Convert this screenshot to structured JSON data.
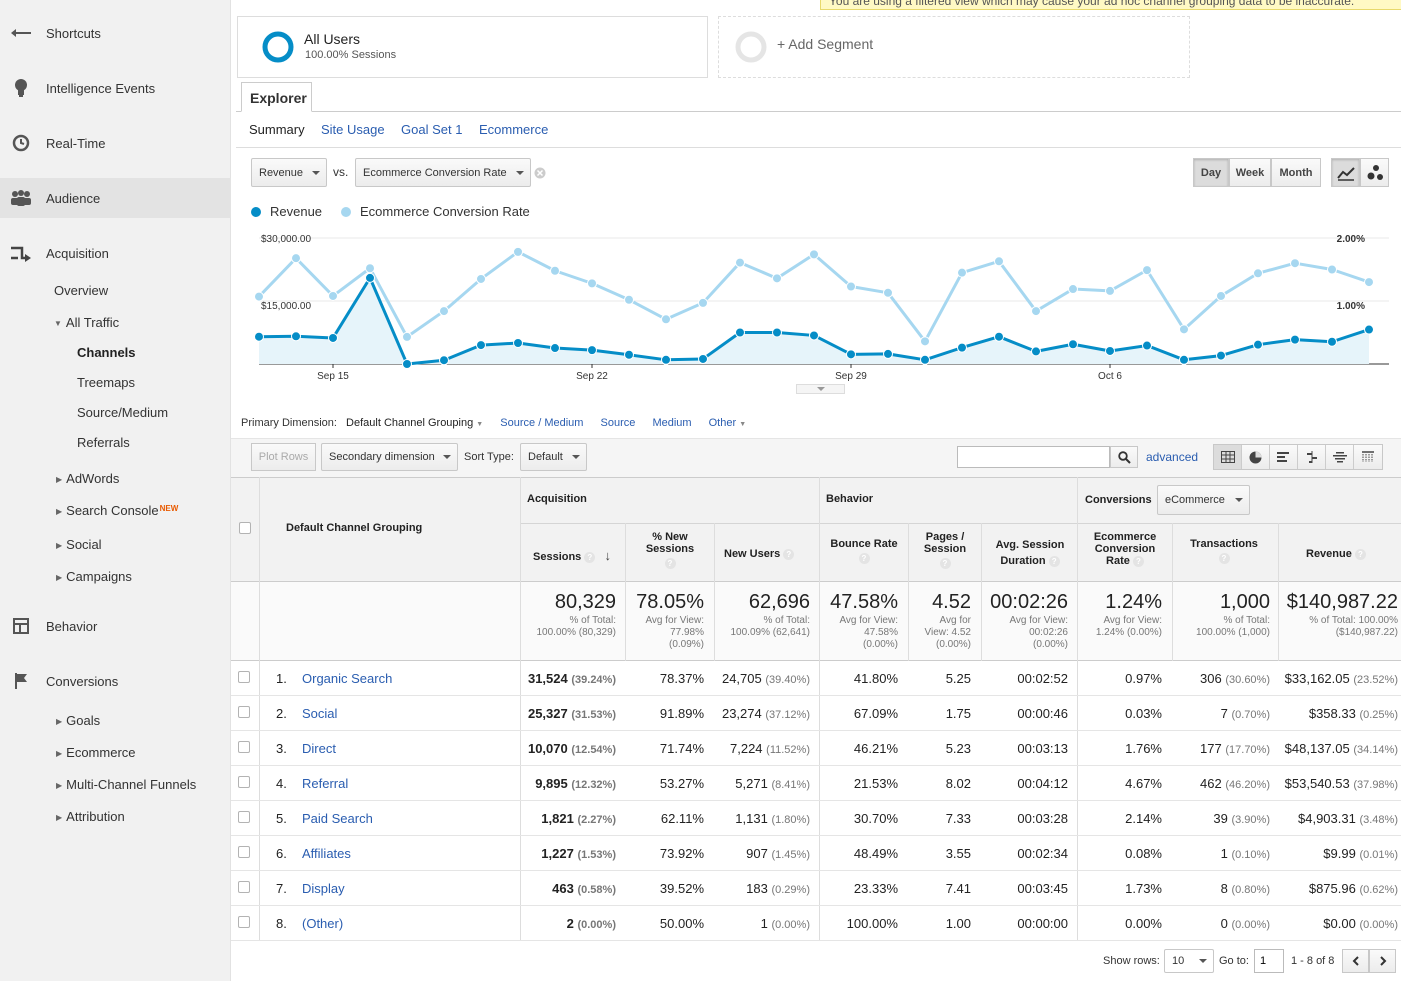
{
  "colors": {
    "revenue": "#058dc7",
    "conversion": "#a6d7f0",
    "link": "#2a5db0"
  },
  "sidebar": {
    "main": [
      {
        "label": "Shortcuts",
        "icon": "shortcuts-arrow-icon"
      },
      {
        "label": "Intelligence Events",
        "icon": "lightbulb-icon"
      },
      {
        "label": "Real-Time",
        "icon": "clock-icon"
      },
      {
        "label": "Audience",
        "icon": "people-icon"
      },
      {
        "label": "Acquisition",
        "icon": "acquisition-arrows-icon"
      },
      {
        "label": "Behavior",
        "icon": "behavior-layout-icon"
      },
      {
        "label": "Conversions",
        "icon": "flag-icon"
      }
    ],
    "acq": {
      "overview": "Overview",
      "all_traffic": "All Traffic",
      "channels": "Channels",
      "treemaps": "Treemaps",
      "source_medium": "Source/Medium",
      "referrals": "Referrals",
      "adwords": "AdWords",
      "search_console": "Search Console",
      "new_badge": "NEW",
      "social": "Social",
      "campaigns": "Campaigns"
    },
    "conv": {
      "goals": "Goals",
      "ecommerce": "Ecommerce",
      "mcf": "Multi-Channel Funnels",
      "attribution": "Attribution"
    }
  },
  "warning": "You are using a filtered view which may cause your ad hoc channel grouping data to be inaccurate.",
  "segments": {
    "all_users": "All Users",
    "all_users_sub": "100.00% Sessions",
    "add_segment": "+ Add Segment"
  },
  "explorer_tab": "Explorer",
  "subtabs": [
    "Summary",
    "Site Usage",
    "Goal Set 1",
    "Ecommerce"
  ],
  "chart_controls": {
    "metric1": "Revenue",
    "vs": "vs.",
    "metric2": "Ecommerce Conversion Rate",
    "day": "Day",
    "week": "Week",
    "month": "Month"
  },
  "chart_data": {
    "type": "line",
    "x_tick_labels": [
      "Sep 15",
      "Sep 22",
      "Sep 29",
      "Oct 6"
    ],
    "y_left_ticks": [
      "$30,000.00",
      "$15,000.00"
    ],
    "y_right_ticks": [
      "2.00%",
      "1.00%"
    ],
    "y_left_range": [
      0,
      30000
    ],
    "y_right_range": [
      0,
      2.0
    ],
    "series": [
      {
        "name": "Revenue",
        "values": [
          6500,
          6600,
          6200,
          20500,
          0,
          900,
          4500,
          5000,
          3800,
          3300,
          2200,
          1000,
          1200,
          7500,
          7500,
          6800,
          2300,
          2400,
          1000,
          3900,
          6500,
          3000,
          4700,
          3100,
          4400,
          1000,
          2000,
          4600,
          5800,
          5300,
          8200
        ]
      },
      {
        "name": "Ecommerce Conversion Rate",
        "values": [
          1.07,
          1.68,
          1.08,
          1.52,
          0.43,
          0.84,
          1.35,
          1.78,
          1.48,
          1.28,
          1.02,
          0.71,
          0.97,
          1.61,
          1.36,
          1.74,
          1.23,
          1.13,
          0.36,
          1.45,
          1.63,
          0.84,
          1.19,
          1.16,
          1.49,
          0.55,
          1.08,
          1.44,
          1.6,
          1.5,
          1.3
        ]
      }
    ],
    "grid": true,
    "legend_position": "top-left"
  },
  "dimension_bar": {
    "primary_label": "Primary Dimension:",
    "current": "Default Channel Grouping",
    "links": [
      "Source / Medium",
      "Source",
      "Medium"
    ],
    "other": "Other"
  },
  "toolbar": {
    "plot_rows": "Plot Rows",
    "secondary": "Secondary dimension",
    "sort_type_label": "Sort Type:",
    "sort_type": "Default",
    "advanced": "advanced"
  },
  "table": {
    "dimension_header": "Default Channel Grouping",
    "groups": {
      "acquisition": "Acquisition",
      "behavior": "Behavior",
      "conversions": "Conversions",
      "conversions_select": "eCommerce"
    },
    "columns": {
      "sessions": "Sessions",
      "new_sessions": "% New Sessions",
      "new_users": "New Users",
      "bounce": "Bounce Rate",
      "pages": "Pages / Session",
      "duration": "Avg. Session Duration",
      "conv_rate": "Ecommerce Conversion Rate",
      "transactions": "Transactions",
      "revenue": "Revenue"
    },
    "totals": {
      "sessions": {
        "big": "80,329",
        "small": [
          "% of Total:",
          "100.00% (80,329)"
        ]
      },
      "new_sessions": {
        "big": "78.05%",
        "small": [
          "Avg for View:",
          "77.98%",
          "(0.09%)"
        ]
      },
      "new_users": {
        "big": "62,696",
        "small": [
          "% of Total:",
          "100.09% (62,641)"
        ]
      },
      "bounce": {
        "big": "47.58%",
        "small": [
          "Avg for View:",
          "47.58%",
          "(0.00%)"
        ]
      },
      "pages": {
        "big": "4.52",
        "small": [
          "Avg for",
          "View: 4.52",
          "(0.00%)"
        ]
      },
      "duration": {
        "big": "00:02:26",
        "small": [
          "Avg for View:",
          "00:02:26",
          "(0.00%)"
        ]
      },
      "conv_rate": {
        "big": "1.24%",
        "small": [
          "Avg for View:",
          "1.24% (0.00%)"
        ]
      },
      "transactions": {
        "big": "1,000",
        "small": [
          "% of Total:",
          "100.00% (1,000)"
        ]
      },
      "revenue": {
        "big": "$140,987.22",
        "small": [
          "% of Total: 100.00%",
          "($140,987.22)"
        ]
      }
    },
    "rows": [
      {
        "idx": "1.",
        "name": "Organic Search",
        "sessions": "31,524",
        "sessions_pct": "(39.24%)",
        "new_sessions": "78.37%",
        "new_users": "24,705",
        "new_users_pct": "(39.40%)",
        "bounce": "41.80%",
        "pages": "5.25",
        "duration": "00:02:52",
        "conv": "0.97%",
        "trans": "306",
        "trans_pct": "(30.60%)",
        "rev": "$33,162.05",
        "rev_pct": "(23.52%)"
      },
      {
        "idx": "2.",
        "name": "Social",
        "sessions": "25,327",
        "sessions_pct": "(31.53%)",
        "new_sessions": "91.89%",
        "new_users": "23,274",
        "new_users_pct": "(37.12%)",
        "bounce": "67.09%",
        "pages": "1.75",
        "duration": "00:00:46",
        "conv": "0.03%",
        "trans": "7",
        "trans_pct": "(0.70%)",
        "rev": "$358.33",
        "rev_pct": "(0.25%)"
      },
      {
        "idx": "3.",
        "name": "Direct",
        "sessions": "10,070",
        "sessions_pct": "(12.54%)",
        "new_sessions": "71.74%",
        "new_users": "7,224",
        "new_users_pct": "(11.52%)",
        "bounce": "46.21%",
        "pages": "5.23",
        "duration": "00:03:13",
        "conv": "1.76%",
        "trans": "177",
        "trans_pct": "(17.70%)",
        "rev": "$48,137.05",
        "rev_pct": "(34.14%)"
      },
      {
        "idx": "4.",
        "name": "Referral",
        "sessions": "9,895",
        "sessions_pct": "(12.32%)",
        "new_sessions": "53.27%",
        "new_users": "5,271",
        "new_users_pct": "(8.41%)",
        "bounce": "21.53%",
        "pages": "8.02",
        "duration": "00:04:12",
        "conv": "4.67%",
        "trans": "462",
        "trans_pct": "(46.20%)",
        "rev": "$53,540.53",
        "rev_pct": "(37.98%)"
      },
      {
        "idx": "5.",
        "name": "Paid Search",
        "sessions": "1,821",
        "sessions_pct": "(2.27%)",
        "new_sessions": "62.11%",
        "new_users": "1,131",
        "new_users_pct": "(1.80%)",
        "bounce": "30.70%",
        "pages": "7.33",
        "duration": "00:03:28",
        "conv": "2.14%",
        "trans": "39",
        "trans_pct": "(3.90%)",
        "rev": "$4,903.31",
        "rev_pct": "(3.48%)"
      },
      {
        "idx": "6.",
        "name": "Affiliates",
        "sessions": "1,227",
        "sessions_pct": "(1.53%)",
        "new_sessions": "73.92%",
        "new_users": "907",
        "new_users_pct": "(1.45%)",
        "bounce": "48.49%",
        "pages": "3.55",
        "duration": "00:02:34",
        "conv": "0.08%",
        "trans": "1",
        "trans_pct": "(0.10%)",
        "rev": "$9.99",
        "rev_pct": "(0.01%)"
      },
      {
        "idx": "7.",
        "name": "Display",
        "sessions": "463",
        "sessions_pct": "(0.58%)",
        "new_sessions": "39.52%",
        "new_users": "183",
        "new_users_pct": "(0.29%)",
        "bounce": "23.33%",
        "pages": "7.41",
        "duration": "00:03:45",
        "conv": "1.73%",
        "trans": "8",
        "trans_pct": "(0.80%)",
        "rev": "$875.96",
        "rev_pct": "(0.62%)"
      },
      {
        "idx": "8.",
        "name": "(Other)",
        "sessions": "2",
        "sessions_pct": "(0.00%)",
        "new_sessions": "50.00%",
        "new_users": "1",
        "new_users_pct": "(0.00%)",
        "bounce": "100.00%",
        "pages": "1.00",
        "duration": "00:00:00",
        "conv": "0.00%",
        "trans": "0",
        "trans_pct": "(0.00%)",
        "rev": "$0.00",
        "rev_pct": "(0.00%)"
      }
    ]
  },
  "pagination": {
    "show_rows_label": "Show rows:",
    "show_rows": "10",
    "goto_label": "Go to:",
    "goto_value": "1",
    "range": "1 - 8 of 8"
  }
}
